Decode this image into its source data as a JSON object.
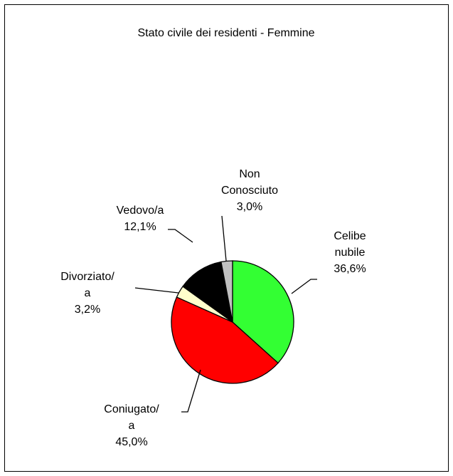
{
  "chart_data": {
    "type": "pie",
    "title": "Stato civile dei residenti - Femmine",
    "categories": [
      "Celibe nubile",
      "Coniugato/a",
      "Divorziato/a",
      "Vedovo/a",
      "Non Conosciuto"
    ],
    "values": [
      36.6,
      45.0,
      3.2,
      12.1,
      3.0
    ],
    "value_labels": [
      "36,6%",
      "45,0%",
      "3,2%",
      "12,1%",
      "3,0%"
    ],
    "colors": [
      "#33ff33",
      "#ff0000",
      "#ffffcc",
      "#000000",
      "#c0c0c0"
    ]
  }
}
